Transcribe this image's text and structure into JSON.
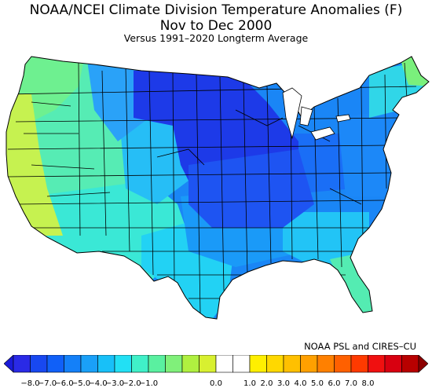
{
  "title": {
    "line1": "NOAA/NCEI Climate Division Temperature Anomalies (F)",
    "line2": "Nov to Dec 2000",
    "line3": "Versus 1991–2020 Longterm Average"
  },
  "credit": "NOAA PSL and CIRES–CU",
  "legend": {
    "tick_labels": [
      "−8.0",
      "−7.0",
      "−6.0",
      "−5.0",
      "−4.0",
      "−3.0",
      "−2.0",
      "−1.0",
      "0.0",
      "1.0",
      "2.0",
      "3.0",
      "4.0",
      "5.0",
      "6.0",
      "7.0",
      "8.0"
    ],
    "colors": [
      "#1a1ad8",
      "#2a2ae6",
      "#1848f0",
      "#1060f8",
      "#1480f8",
      "#1aa0f8",
      "#18c0f8",
      "#22e0f4",
      "#40f0c8",
      "#5af0a0",
      "#80f07a",
      "#b0f040",
      "#d8f030",
      "#ffffff",
      "#ffffff",
      "#ffef00",
      "#ffd800",
      "#ffc000",
      "#ffa000",
      "#ff8000",
      "#ff6000",
      "#ff3a00",
      "#f01010",
      "#d80010",
      "#b80000",
      "#8c0000"
    ]
  },
  "map": {
    "regions": [
      {
        "name": "pacific-northwest",
        "fill": "#6ef090"
      },
      {
        "name": "pacific-coast",
        "fill": "#c6f250"
      },
      {
        "name": "great-basin",
        "fill": "#56ecb4"
      },
      {
        "name": "southwest",
        "fill": "#3ae8d6"
      },
      {
        "name": "northern-rockies",
        "fill": "#2aa2f8"
      },
      {
        "name": "central-rockies",
        "fill": "#26bef6"
      },
      {
        "name": "upper-midwest",
        "fill": "#1d3ae8"
      },
      {
        "name": "southern-plains",
        "fill": "#22d2f4"
      },
      {
        "name": "mid-mississippi",
        "fill": "#1e54f2"
      },
      {
        "name": "lower-mississippi",
        "fill": "#1a9af8"
      },
      {
        "name": "southeast",
        "fill": "#22c4f6"
      },
      {
        "name": "florida",
        "fill": "#54ecb2"
      },
      {
        "name": "ohio-valley",
        "fill": "#1a6ef6"
      },
      {
        "name": "mid-atlantic",
        "fill": "#1c88f8"
      },
      {
        "name": "new-england",
        "fill": "#30d6e8"
      },
      {
        "name": "northern-maine",
        "fill": "#7af07c"
      }
    ]
  }
}
